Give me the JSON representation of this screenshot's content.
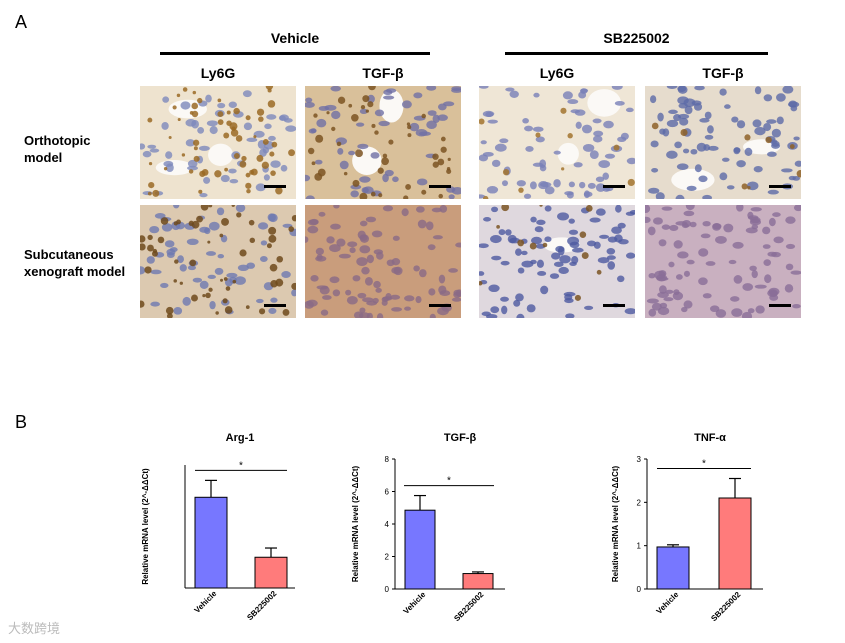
{
  "panel_a": {
    "letter": "A",
    "groups": [
      "Vehicle",
      "SB225002"
    ],
    "columns": [
      "Ly6G",
      "TGF-β",
      "Ly6G",
      "TGF-β"
    ],
    "rows": [
      {
        "line1": "Orthotopic",
        "line2": "model"
      },
      {
        "line1": "Subcutaneous",
        "line2": "xenograft model"
      }
    ]
  },
  "panel_b": {
    "letter": "B"
  },
  "watermark": "大数跨境",
  "chart_data": [
    {
      "type": "bar",
      "title": "Arg-1",
      "ylabel": "Relative mRNA level (2^-ΔΔCt)",
      "categories": [
        "Vehicle",
        "SB225002"
      ],
      "values": [
        2.95,
        1.0
      ],
      "errors": [
        0.55,
        0.3
      ],
      "ylim": [
        0,
        4
      ],
      "yticks": [],
      "colors": [
        "#7777ff",
        "#ff7b7b"
      ],
      "significance": "*"
    },
    {
      "type": "bar",
      "title": "TGF-β",
      "ylabel": "Relative mRNA level (2^-ΔΔCt)",
      "categories": [
        "Vehicle",
        "SB225002"
      ],
      "values": [
        4.85,
        0.95
      ],
      "errors": [
        0.9,
        0.1
      ],
      "ylim": [
        0,
        8
      ],
      "yticks": [
        "0",
        "2",
        "4",
        "6",
        "8"
      ],
      "colors": [
        "#7777ff",
        "#ff7b7b"
      ],
      "significance": "*"
    },
    {
      "type": "bar",
      "title": "TNF-α",
      "ylabel": "Relative mRNA level (2^-ΔΔCt)",
      "categories": [
        "Vehicle",
        "SB225002"
      ],
      "values": [
        0.97,
        2.1
      ],
      "errors": [
        0.05,
        0.45
      ],
      "ylim": [
        0,
        3
      ],
      "yticks": [
        "0",
        "1",
        "2",
        "3"
      ],
      "colors": [
        "#7777ff",
        "#ff7b7b"
      ],
      "significance": "*"
    }
  ]
}
